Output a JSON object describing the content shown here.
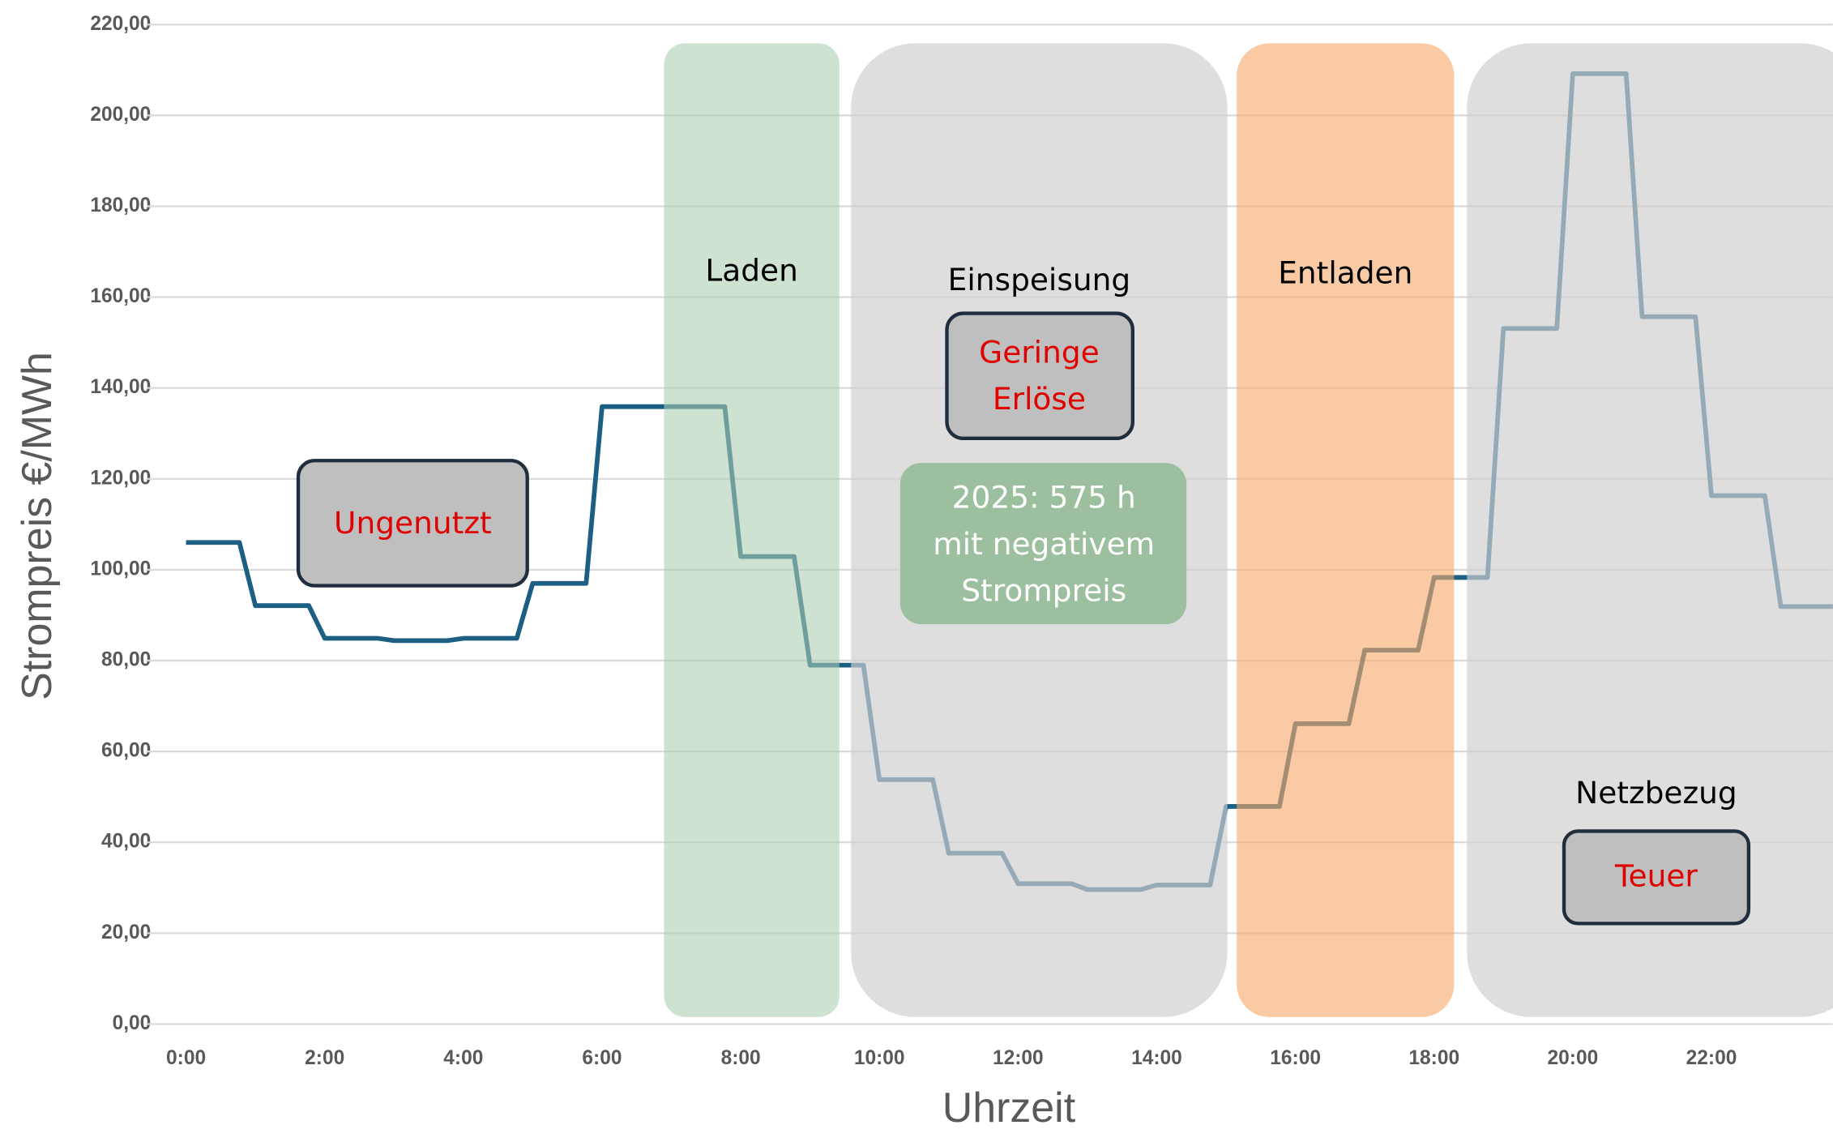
{
  "chart_data": {
    "type": "line",
    "ylabel": "Strompreis €/MWh",
    "xlabel": "Uhrzeit",
    "x": [
      0,
      0.77,
      1,
      1.77,
      2,
      2.77,
      3,
      3.77,
      4,
      4.77,
      5,
      5.77,
      6,
      6.77,
      7,
      7.77,
      8,
      8.77,
      9,
      9.77,
      10,
      10.77,
      11,
      11.77,
      12,
      12.77,
      13,
      13.77,
      14,
      14.77,
      15,
      15.77,
      16,
      16.77,
      17,
      17.77,
      18,
      18.77,
      19,
      19.77,
      20,
      20.77,
      21,
      21.77,
      22,
      22.77,
      23,
      23.75
    ],
    "series": [
      {
        "name": "Strompreis",
        "color": "#1d5f82",
        "values": [
          106,
          106,
          92.1,
          92.1,
          84.9,
          84.9,
          84.4,
          84.4,
          84.9,
          84.9,
          97,
          97,
          135.9,
          135.9,
          135.9,
          135.9,
          102.9,
          102.9,
          79,
          79,
          53.8,
          53.8,
          37.6,
          37.6,
          30.9,
          30.9,
          29.6,
          29.6,
          30.6,
          30.6,
          47.9,
          47.9,
          66.1,
          66.1,
          82.3,
          82.3,
          98.3,
          98.3,
          153.1,
          153.1,
          209.2,
          209.2,
          155.7,
          155.7,
          116.3,
          116.3,
          91.9,
          91.9
        ]
      }
    ],
    "xlim": [
      0,
      23.75
    ],
    "ylim": [
      0,
      220
    ],
    "xticks": [
      {
        "value": 0,
        "label": "0:00"
      },
      {
        "value": 2,
        "label": "2:00"
      },
      {
        "value": 4,
        "label": "4:00"
      },
      {
        "value": 6,
        "label": "6:00"
      },
      {
        "value": 8,
        "label": "8:00"
      },
      {
        "value": 10,
        "label": "10:00"
      },
      {
        "value": 12,
        "label": "12:00"
      },
      {
        "value": 14,
        "label": "14:00"
      },
      {
        "value": 16,
        "label": "16:00"
      },
      {
        "value": 18,
        "label": "18:00"
      },
      {
        "value": 20,
        "label": "20:00"
      },
      {
        "value": 22,
        "label": "22:00"
      }
    ],
    "yticks": [
      {
        "value": 0,
        "label": "0,00"
      },
      {
        "value": 20,
        "label": "20,00"
      },
      {
        "value": 40,
        "label": "40,00"
      },
      {
        "value": 60,
        "label": "60,00"
      },
      {
        "value": 80,
        "label": "80,00"
      },
      {
        "value": 100,
        "label": "100,00"
      },
      {
        "value": 120,
        "label": "120,00"
      },
      {
        "value": 140,
        "label": "140,00"
      },
      {
        "value": 160,
        "label": "160,00"
      },
      {
        "value": 180,
        "label": "180,00"
      },
      {
        "value": 200,
        "label": "200,00"
      },
      {
        "value": 220,
        "label": "220,00"
      }
    ],
    "grid": true,
    "annotations": {
      "laden": "Laden",
      "einspeisung": "Einspeisung",
      "entladen": "Entladen",
      "netzbezug": "Netzbezug",
      "ungenutzt": "Ungenutzt",
      "erloese": [
        "Geringe",
        "Erlöse"
      ],
      "negativ": [
        "2025: 575 h",
        "mit negativem",
        "Strompreis"
      ],
      "teuer": "Teuer"
    }
  }
}
